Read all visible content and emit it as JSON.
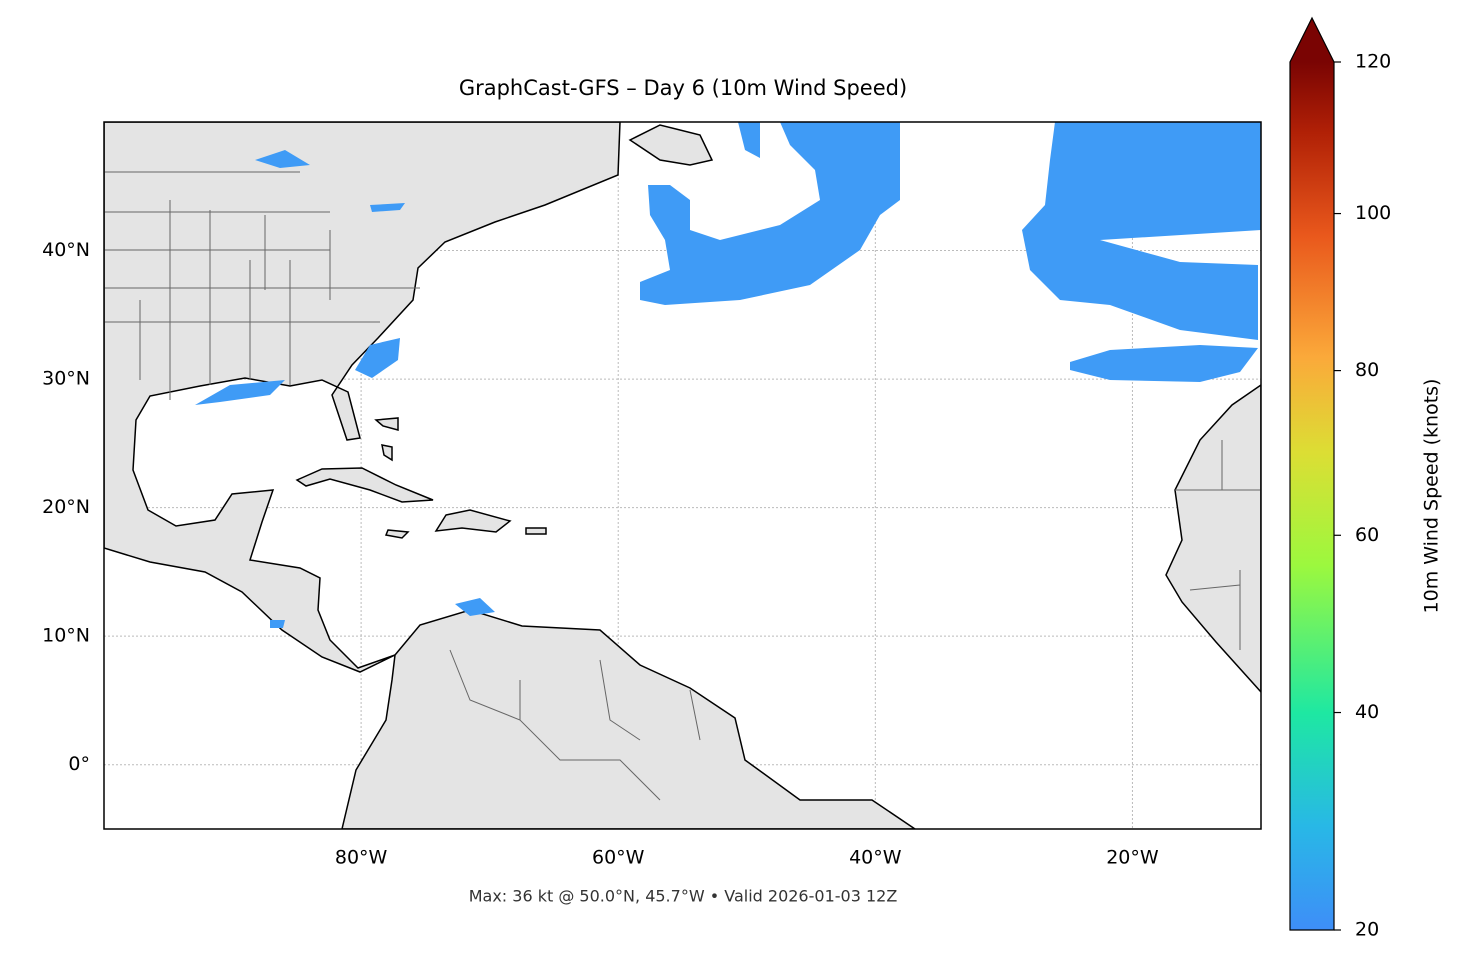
{
  "map": {
    "title": "GraphCast-GFS – Day 6 (10m Wind Speed)",
    "lon_range": [
      -100,
      -10
    ],
    "lat_range": [
      -5,
      50
    ],
    "lon_ticks": [
      {
        "value": -80,
        "label": "80°W"
      },
      {
        "value": -60,
        "label": "60°W"
      },
      {
        "value": -40,
        "label": "40°W"
      },
      {
        "value": -20,
        "label": "20°W"
      }
    ],
    "lat_ticks": [
      {
        "value": 40,
        "label": "40°N"
      },
      {
        "value": 30,
        "label": "30°N"
      },
      {
        "value": 20,
        "label": "20°N"
      },
      {
        "value": 10,
        "label": "10°N"
      },
      {
        "value": 0,
        "label": "0°"
      }
    ],
    "grid": true,
    "footer": "Max: 36 kt @ 50.0°N, 45.7°W • Valid 2026-01-03 12Z"
  },
  "colorbar": {
    "label": "10m Wind Speed (knots)",
    "range": [
      20,
      120
    ],
    "norm": "power",
    "gamma": 0.86,
    "extend": "max",
    "ticks": [
      20,
      40,
      60,
      80,
      100,
      120
    ]
  }
}
